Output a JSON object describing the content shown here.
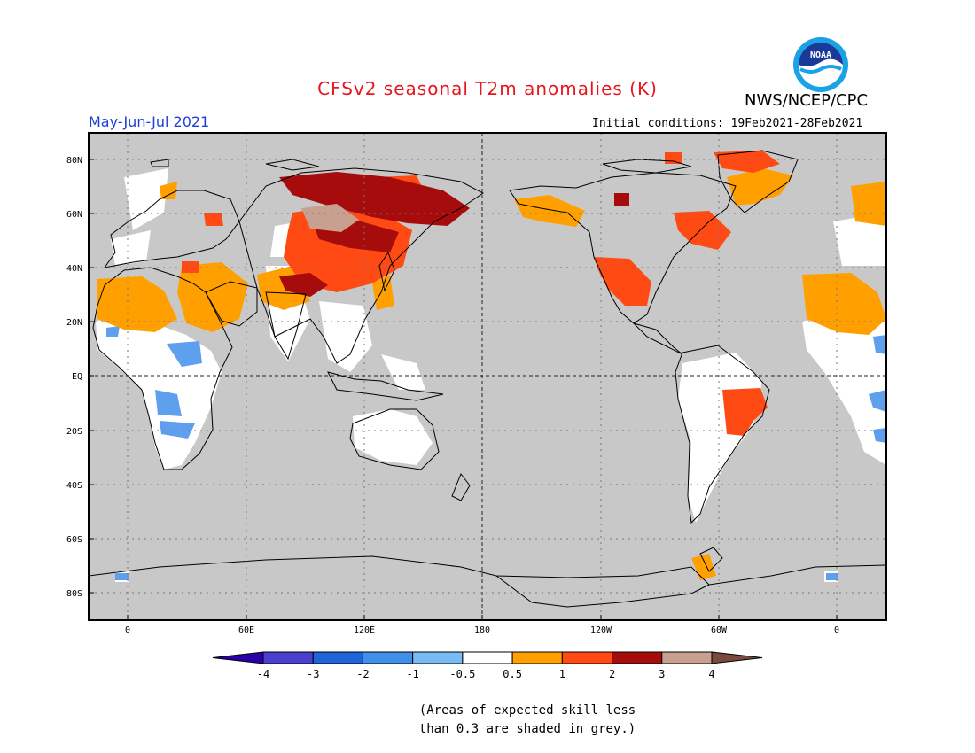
{
  "header": {
    "title": "CFSv2 seasonal T2m anomalies (K)",
    "agency": "NWS/NCEP/CPC",
    "logo_text": "NOAA",
    "season": "May-Jun-Jul 2021",
    "initial_conditions": "Initial conditions: 19Feb2021-28Feb2021"
  },
  "map": {
    "lat_labels": [
      "80N",
      "60N",
      "40N",
      "20N",
      "EQ",
      "20S",
      "40S",
      "60S",
      "80S"
    ],
    "lon_labels": [
      "0",
      "60E",
      "120E",
      "180",
      "120W",
      "60W",
      "0"
    ],
    "background_color": "#c8c8c8",
    "skill_mask": "grey"
  },
  "legend": {
    "labels": [
      "-4",
      "-3",
      "-2",
      "-1",
      "-0.5",
      "0.5",
      "1",
      "2",
      "3",
      "4"
    ],
    "colors": [
      "#2a00a8",
      "#4a3fd0",
      "#1f64d8",
      "#3e90ea",
      "#78bcf3",
      "#ffffff",
      "#ffa000",
      "#ff4a14",
      "#a60c0c",
      "#c8a090",
      "#7a4a3c"
    ]
  },
  "footnote": {
    "line1": "(Areas of expected skill less",
    "line2": "than 0.3 are shaded in grey.)"
  }
}
